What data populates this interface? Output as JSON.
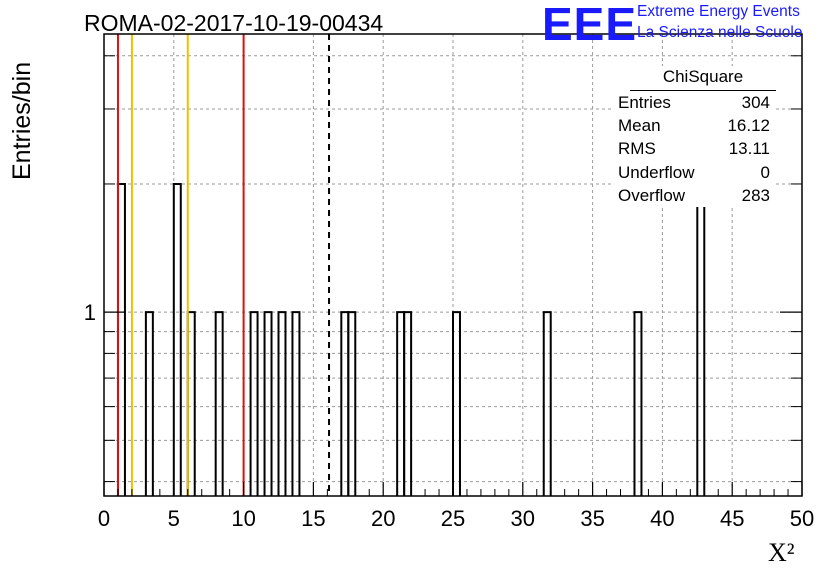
{
  "header": {
    "title": "ROMA-02-2017-10-19-00434",
    "logo_text": "EEE",
    "logo_line1": "Extreme Energy Events",
    "logo_line2": "La Scienza nelle Scuole",
    "logo_color": "#1a1aff"
  },
  "stats": {
    "title": "ChiSquare",
    "rows": [
      {
        "label": "Entries",
        "value": "304"
      },
      {
        "label": "Mean",
        "value": "16.12"
      },
      {
        "label": "RMS",
        "value": "13.11"
      },
      {
        "label": "Underflow",
        "value": "0"
      },
      {
        "label": "Overflow",
        "value": "283"
      }
    ]
  },
  "chart_data": {
    "type": "bar",
    "title": "ROMA-02-2017-10-19-00434",
    "xlabel": "X²",
    "ylabel": "Entries/bin",
    "xlim": [
      0,
      50
    ],
    "ylim": [
      0.37,
      4.5
    ],
    "yscale": "log",
    "grid": true,
    "bin_width": 0.5,
    "x_ticks": [
      "0",
      "5",
      "10",
      "15",
      "20",
      "25",
      "30",
      "35",
      "40",
      "45",
      "50"
    ],
    "y_tick_labels": [
      {
        "value": 1,
        "label": "1"
      }
    ],
    "bins": [
      {
        "x": 1.0,
        "count": 2
      },
      {
        "x": 3.0,
        "count": 1
      },
      {
        "x": 5.0,
        "count": 2
      },
      {
        "x": 6.0,
        "count": 1
      },
      {
        "x": 8.0,
        "count": 1
      },
      {
        "x": 10.5,
        "count": 1
      },
      {
        "x": 11.5,
        "count": 1
      },
      {
        "x": 12.5,
        "count": 1
      },
      {
        "x": 13.5,
        "count": 1
      },
      {
        "x": 17.0,
        "count": 1
      },
      {
        "x": 17.5,
        "count": 1
      },
      {
        "x": 21.0,
        "count": 1
      },
      {
        "x": 21.5,
        "count": 1
      },
      {
        "x": 25.0,
        "count": 1
      },
      {
        "x": 31.5,
        "count": 1
      },
      {
        "x": 38.0,
        "count": 1
      },
      {
        "x": 42.5,
        "count": 2
      }
    ],
    "vertical_lines": [
      {
        "x": 1,
        "color": "#dd1111",
        "style": "solid"
      },
      {
        "x": 2,
        "color": "#f0c000",
        "style": "solid"
      },
      {
        "x": 6,
        "color": "#f0c000",
        "style": "solid"
      },
      {
        "x": 10,
        "color": "#dd1111",
        "style": "solid"
      },
      {
        "x": 16.12,
        "color": "#000000",
        "style": "dashed"
      }
    ]
  }
}
